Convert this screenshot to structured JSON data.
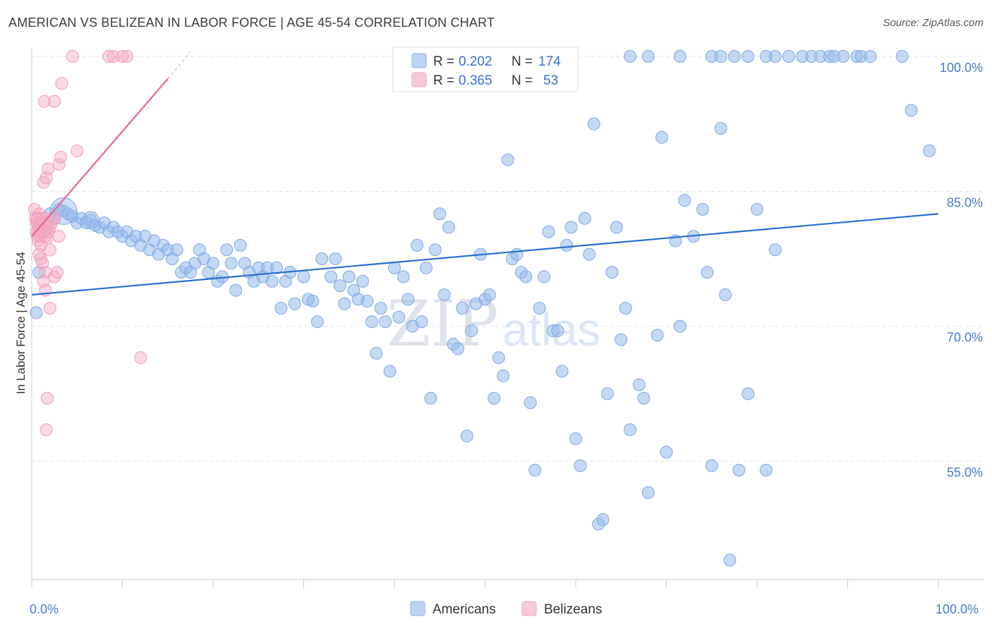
{
  "header": {
    "title": "AMERICAN VS BELIZEAN IN LABOR FORCE | AGE 45-54 CORRELATION CHART",
    "source": "Source: ZipAtlas.com"
  },
  "watermark": {
    "zip": "ZIP",
    "atlas": "atlas"
  },
  "legend_top": {
    "rows": [
      {
        "r_label": "R =",
        "r_value": "0.202",
        "n_label": "N =",
        "n_value": "174",
        "color": "#8fb3e8"
      },
      {
        "r_label": "R =",
        "r_value": "0.365",
        "n_label": "N =",
        "n_value": "53",
        "color": "#f4a6bf"
      }
    ]
  },
  "legend_bottom": {
    "items": [
      {
        "label": "Americans",
        "color": "#8fb3e8"
      },
      {
        "label": "Belizeans",
        "color": "#f4a6bf"
      }
    ]
  },
  "chart_data": {
    "type": "scatter",
    "title": "AMERICAN VS BELIZEAN IN LABOR FORCE | AGE 45-54 CORRELATION CHART",
    "xlabel": "",
    "ylabel": "In Labor Force | Age 45-54",
    "xlim": [
      0,
      100
    ],
    "ylim": [
      40,
      101
    ],
    "x_tick_labels": [
      "0.0%",
      "100.0%"
    ],
    "y_ticks": [
      55,
      70,
      85,
      100
    ],
    "y_tick_labels": [
      "55.0%",
      "70.0%",
      "85.0%",
      "100.0%"
    ],
    "grid": "horizontal dashed",
    "legend_position": "top-center",
    "colors": {
      "Americans": "#7fa8e6",
      "Belizeans": "#f39ab8",
      "americans_line": "#2b6fd0",
      "belizeans_line": "#e8639a"
    },
    "series": [
      {
        "name": "Americans",
        "trend": {
          "x": [
            0,
            100
          ],
          "y": [
            73.5,
            82.5
          ]
        },
        "points": [
          [
            0.5,
            71.5
          ],
          [
            0.8,
            76
          ],
          [
            1.5,
            81
          ],
          [
            2,
            82.5
          ],
          [
            2.5,
            82
          ],
          [
            3,
            83
          ],
          [
            3.5,
            82.8
          ],
          [
            4,
            82.5
          ],
          [
            4.5,
            82.2
          ],
          [
            5,
            81.5
          ],
          [
            5.5,
            82
          ],
          [
            6,
            81.5
          ],
          [
            6.5,
            81.8
          ],
          [
            7,
            81.2
          ],
          [
            7.5,
            81
          ],
          [
            8,
            81.5
          ],
          [
            8.5,
            80.5
          ],
          [
            9,
            81
          ],
          [
            9.5,
            80.5
          ],
          [
            10,
            80
          ],
          [
            10.5,
            80.5
          ],
          [
            11,
            79.5
          ],
          [
            11.5,
            80
          ],
          [
            12,
            79
          ],
          [
            12.5,
            80
          ],
          [
            13,
            78.5
          ],
          [
            13.5,
            79.5
          ],
          [
            14,
            78
          ],
          [
            14.5,
            79
          ],
          [
            15,
            78.5
          ],
          [
            15.5,
            77.5
          ],
          [
            16,
            78.5
          ],
          [
            16.5,
            76
          ],
          [
            17,
            76.5
          ],
          [
            17.5,
            76
          ],
          [
            18,
            77
          ],
          [
            18.5,
            78.5
          ],
          [
            19,
            77.5
          ],
          [
            19.5,
            76
          ],
          [
            20,
            77
          ],
          [
            20.5,
            75
          ],
          [
            21,
            75.5
          ],
          [
            21.5,
            78.5
          ],
          [
            22,
            77
          ],
          [
            22.5,
            74
          ],
          [
            23,
            79
          ],
          [
            23.5,
            77
          ],
          [
            24,
            76
          ],
          [
            24.5,
            75
          ],
          [
            25,
            76.5
          ],
          [
            25.5,
            75.5
          ],
          [
            26,
            76.5
          ],
          [
            26.5,
            75
          ],
          [
            27,
            76.5
          ],
          [
            27.5,
            72
          ],
          [
            28,
            75
          ],
          [
            28.5,
            76
          ],
          [
            29,
            72.5
          ],
          [
            30,
            75.5
          ],
          [
            30.5,
            73
          ],
          [
            31,
            72.8
          ],
          [
            31.5,
            70.5
          ],
          [
            32,
            77.5
          ],
          [
            33,
            75.5
          ],
          [
            33.5,
            77.5
          ],
          [
            34,
            74.5
          ],
          [
            34.5,
            72.5
          ],
          [
            35,
            75.5
          ],
          [
            35.5,
            74
          ],
          [
            36,
            73
          ],
          [
            36.5,
            75
          ],
          [
            37,
            72.8
          ],
          [
            37.5,
            70.5
          ],
          [
            38,
            67
          ],
          [
            38.5,
            72
          ],
          [
            39,
            70.5
          ],
          [
            39.5,
            65
          ],
          [
            40,
            76.5
          ],
          [
            40.5,
            71
          ],
          [
            41,
            75.5
          ],
          [
            41.5,
            73
          ],
          [
            42,
            70
          ],
          [
            42.5,
            79
          ],
          [
            43,
            70.5
          ],
          [
            43.5,
            76.5
          ],
          [
            44,
            62
          ],
          [
            44.5,
            78.5
          ],
          [
            45,
            82.5
          ],
          [
            45.5,
            73.5
          ],
          [
            46,
            81
          ],
          [
            46.5,
            68
          ],
          [
            47,
            67.5
          ],
          [
            47.5,
            72
          ],
          [
            48,
            57.8
          ],
          [
            48.5,
            69.5
          ],
          [
            49,
            72.5
          ],
          [
            49.5,
            78
          ],
          [
            50,
            73
          ],
          [
            50.5,
            73.5
          ],
          [
            51,
            62
          ],
          [
            51.5,
            66.5
          ],
          [
            52,
            64.5
          ],
          [
            52.5,
            88.5
          ],
          [
            53,
            77.5
          ],
          [
            53.5,
            78
          ],
          [
            54,
            76
          ],
          [
            54.5,
            75.5
          ],
          [
            55,
            61.5
          ],
          [
            55.5,
            54
          ],
          [
            56,
            72
          ],
          [
            56.5,
            75.5
          ],
          [
            57,
            80.5
          ],
          [
            57.5,
            69.5
          ],
          [
            58,
            69.5
          ],
          [
            58.5,
            65
          ],
          [
            59,
            79
          ],
          [
            59.5,
            81
          ],
          [
            60,
            57.5
          ],
          [
            60.5,
            54.5
          ],
          [
            61,
            82
          ],
          [
            61.5,
            78
          ],
          [
            62,
            92.5
          ],
          [
            62.5,
            48
          ],
          [
            63,
            48.5
          ],
          [
            63.5,
            62.5
          ],
          [
            64,
            76
          ],
          [
            64.5,
            81
          ],
          [
            65,
            68.5
          ],
          [
            65.5,
            72
          ],
          [
            66,
            58.5
          ],
          [
            67,
            63.5
          ],
          [
            67.5,
            62
          ],
          [
            68,
            51.5
          ],
          [
            69,
            69
          ],
          [
            69.5,
            91
          ],
          [
            70,
            56
          ],
          [
            71,
            79.5
          ],
          [
            71.5,
            70
          ],
          [
            72,
            84
          ],
          [
            73,
            80
          ],
          [
            74,
            83
          ],
          [
            74.5,
            76
          ],
          [
            75,
            54.5
          ],
          [
            76,
            92
          ],
          [
            76.5,
            73.5
          ],
          [
            77,
            44
          ],
          [
            78,
            54
          ],
          [
            79,
            62.5
          ],
          [
            80,
            83
          ],
          [
            81,
            54
          ],
          [
            82,
            78.5
          ],
          [
            66,
            100
          ],
          [
            68,
            100
          ],
          [
            71.5,
            100
          ],
          [
            75,
            100
          ],
          [
            76,
            100
          ],
          [
            77.5,
            100
          ],
          [
            79,
            100
          ],
          [
            81,
            100
          ],
          [
            82,
            100
          ],
          [
            83.5,
            100
          ],
          [
            85,
            100
          ],
          [
            86,
            100
          ],
          [
            87,
            100
          ],
          [
            88,
            100
          ],
          [
            88.5,
            100
          ],
          [
            89.5,
            100
          ],
          [
            91,
            100
          ],
          [
            91.5,
            100
          ],
          [
            92.5,
            100
          ],
          [
            96,
            100
          ],
          [
            97,
            94
          ],
          [
            99,
            89.5
          ]
        ]
      },
      {
        "name": "Belizeans",
        "trend": {
          "x": [
            0,
            15
          ],
          "y": [
            80,
            97.5
          ]
        },
        "points": [
          [
            0.3,
            83
          ],
          [
            0.4,
            82
          ],
          [
            0.5,
            81.5
          ],
          [
            0.5,
            80.5
          ],
          [
            0.6,
            80
          ],
          [
            0.7,
            79.5
          ],
          [
            0.8,
            81
          ],
          [
            0.8,
            82.5
          ],
          [
            0.9,
            81.5
          ],
          [
            1,
            80.5
          ],
          [
            1,
            79
          ],
          [
            1.1,
            82
          ],
          [
            1.2,
            81.5
          ],
          [
            1.3,
            80.5
          ],
          [
            1.4,
            81
          ],
          [
            1.5,
            80
          ],
          [
            1.5,
            82
          ],
          [
            1.6,
            81.5
          ],
          [
            1.7,
            79.8
          ],
          [
            1.8,
            80.5
          ],
          [
            2,
            81
          ],
          [
            2,
            78.5
          ],
          [
            1.2,
            77
          ],
          [
            1.5,
            76
          ],
          [
            1.3,
            75
          ],
          [
            1.5,
            74
          ],
          [
            2,
            72
          ],
          [
            2.5,
            75.5
          ],
          [
            2.8,
            76
          ],
          [
            3,
            80
          ],
          [
            1.3,
            86
          ],
          [
            1.6,
            86.5
          ],
          [
            1.8,
            87.5
          ],
          [
            3,
            88
          ],
          [
            3.2,
            88.8
          ],
          [
            5,
            89.5
          ],
          [
            1.4,
            95
          ],
          [
            2.5,
            95
          ],
          [
            3.3,
            97
          ],
          [
            4.5,
            100
          ],
          [
            8.5,
            100
          ],
          [
            9,
            100
          ],
          [
            10,
            100
          ],
          [
            10.5,
            100
          ],
          [
            12,
            66.5
          ],
          [
            1.7,
            62
          ],
          [
            1.6,
            58.5
          ],
          [
            0.8,
            78
          ],
          [
            1,
            77.5
          ],
          [
            2.2,
            81.5
          ],
          [
            2.5,
            82
          ],
          [
            0.6,
            82
          ],
          [
            0.9,
            80
          ]
        ]
      }
    ]
  }
}
